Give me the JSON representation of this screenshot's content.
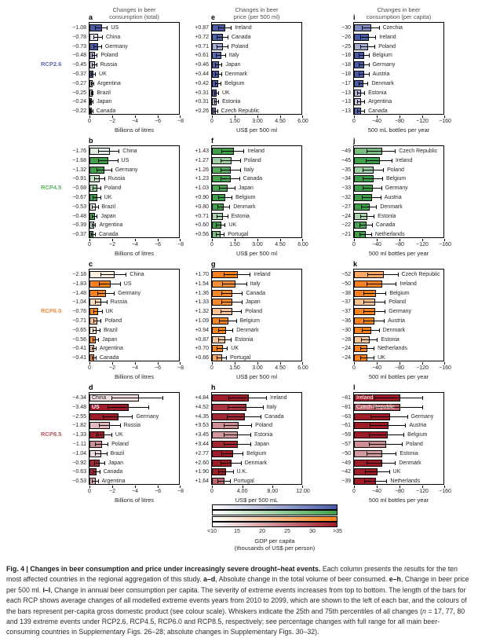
{
  "figure": {
    "col_titles": [
      "Changes in beer\nconsumption (total)",
      "Changes in beer\nprice (per 500 ml)",
      "Changes in beer\nconsumption (per capita)"
    ],
    "rcp_rows": [
      {
        "label": "RCP2.6",
        "color": "#5a6ab4"
      },
      {
        "label": "RCP4.5",
        "color": "#5cb260"
      },
      {
        "label": "RCP6.0",
        "color": "#f28b3e"
      },
      {
        "label": "RCP8.5",
        "color": "#b05560"
      }
    ],
    "row_base_colors": [
      "#4a5ba8",
      "#3fa04a",
      "#f8821f",
      "#9e1b28"
    ],
    "gdp_shades": {
      "US": 1.0,
      "China": 0.14,
      "Germany": 1.0,
      "Poland": 0.5,
      "Russia": 0.3,
      "UK": 1.0,
      "U.K.": 1.0,
      "Argentina": 0.35,
      "Brazil": 0.16,
      "Japan": 0.95,
      "Canada": 0.95,
      "Ireland": 1.0,
      "Italy": 0.9,
      "Denmark": 1.0,
      "Belgium": 1.0,
      "Estonia": 0.45,
      "Czech Republic": 0.7,
      "Czechia": 0.7,
      "Austria": 1.0,
      "Netherlands": 1.0,
      "Portugal": 0.68
    }
  },
  "chart_data": [
    {
      "panel": "a",
      "type": "bar",
      "row": 0,
      "col": 0,
      "rcp": "RCP2.6",
      "metric": "Changes in beer consumption (total)",
      "xlabel": "Billions of litres",
      "xmax": 8,
      "decimals": 2,
      "ticks": [
        "0",
        "−2",
        "−4",
        "−6",
        "−8"
      ],
      "categories": [
        "US",
        "China",
        "Germany",
        "Poland",
        "Russia",
        "UK",
        "Argentina",
        "Brazil",
        "Japan",
        "Canada"
      ],
      "values": [
        -1.08,
        -0.78,
        -0.73,
        -0.48,
        -0.45,
        -0.37,
        -0.27,
        -0.25,
        -0.24,
        -0.22
      ]
    },
    {
      "panel": "e",
      "type": "bar",
      "row": 0,
      "col": 1,
      "rcp": "RCP2.6",
      "metric": "Changes in beer price (per 500 ml)",
      "xlabel": "US$ per 500 ml",
      "xmax": 6,
      "decimals": 2,
      "ticks": [
        "0",
        "1.50",
        "3.00",
        "4.50",
        "6.00"
      ],
      "categories": [
        "Ireland",
        "Canada",
        "Poland",
        "Italy",
        "Japan",
        "Denmark",
        "Belgium",
        "UK",
        "Estonia",
        "Czech Republic"
      ],
      "values": [
        0.87,
        0.72,
        0.71,
        0.61,
        0.46,
        0.44,
        0.42,
        0.31,
        0.31,
        0.26
      ]
    },
    {
      "panel": "i",
      "type": "bar",
      "row": 0,
      "col": 2,
      "rcp": "RCP2.6",
      "metric": "Changes in beer consumption (per capita)",
      "xlabel": "500 mL bottles per year",
      "xmax": 160,
      "decimals": 0,
      "ticks": [
        "0",
        "−40",
        "−80",
        "−120",
        "−160"
      ],
      "categories": [
        "Czechia",
        "Ireland",
        "Poland",
        "Belgium",
        "Germany",
        "Austria",
        "Denmark",
        "Estonia",
        "Argentina",
        "Canada"
      ],
      "values": [
        -30,
        -26,
        -25,
        -18,
        -18,
        -18,
        -17,
        -13,
        -13,
        -13
      ]
    },
    {
      "panel": "b",
      "type": "bar",
      "row": 1,
      "col": 0,
      "rcp": "RCP4.5",
      "metric": "Changes in beer consumption (total)",
      "xlabel": "Billions of litres",
      "xmax": 8,
      "decimals": 2,
      "ticks": [
        "0",
        "−2",
        "−4",
        "−6",
        "−8"
      ],
      "categories": [
        "China",
        "US",
        "Germany",
        "Russia",
        "Poland",
        "UK",
        "Brazil",
        "Japan",
        "Argentina",
        "Canada"
      ],
      "values": [
        -1.76,
        -1.68,
        -1.32,
        -0.91,
        -0.68,
        -0.67,
        -0.53,
        -0.48,
        -0.39,
        -0.37
      ]
    },
    {
      "panel": "f",
      "type": "bar",
      "row": 1,
      "col": 1,
      "rcp": "RCP4.5",
      "metric": "Changes in beer price (per 500 ml)",
      "xlabel": "US$ per 500 ml",
      "xmax": 6,
      "decimals": 2,
      "ticks": [
        "0",
        "1.50",
        "3.00",
        "4.50",
        "6.00"
      ],
      "categories": [
        "Ireland",
        "Poland",
        "Italy",
        "Canada",
        "Japan",
        "Belgium",
        "Denmark",
        "Estonia",
        "UK",
        "Portugal"
      ],
      "values": [
        1.43,
        1.27,
        1.26,
        1.23,
        1.03,
        0.9,
        0.8,
        0.71,
        0.6,
        0.56
      ]
    },
    {
      "panel": "j",
      "type": "bar",
      "row": 1,
      "col": 2,
      "rcp": "RCP4.5",
      "metric": "Changes in beer consumption (per capita)",
      "xlabel": "500 ml bottles per year",
      "xmax": 160,
      "decimals": 0,
      "ticks": [
        "0",
        "−40",
        "−80",
        "−120",
        "−160"
      ],
      "categories": [
        "Czech Republic",
        "Ireland",
        "Poland",
        "Belgium",
        "Germany",
        "Austria",
        "Denmark",
        "Estonia",
        "Canada",
        "Netherlands"
      ],
      "values": [
        -49,
        -45,
        -35,
        -34,
        -33,
        -32,
        -27,
        -24,
        -22,
        -21
      ]
    },
    {
      "panel": "c",
      "type": "bar",
      "row": 2,
      "col": 0,
      "rcp": "RCP6.0",
      "metric": "Changes in beer consumption (total)",
      "xlabel": "Billions of litres",
      "xmax": 8,
      "decimals": 2,
      "ticks": [
        "0",
        "−2",
        "−4",
        "−6",
        "−8"
      ],
      "categories": [
        "China",
        "US",
        "Germany",
        "Russia",
        "UK",
        "Poland",
        "Brazil",
        "Japan",
        "Argentina",
        "Canada"
      ],
      "values": [
        -2.18,
        -1.83,
        -1.48,
        -1.04,
        -0.76,
        -0.71,
        -0.65,
        -0.56,
        -0.41,
        -0.41
      ]
    },
    {
      "panel": "g",
      "type": "bar",
      "row": 2,
      "col": 1,
      "rcp": "RCP6.0",
      "metric": "Changes in beer price (per 500 ml)",
      "xlabel": "US$ per 500 ml",
      "xmax": 6,
      "decimals": 2,
      "ticks": [
        "0",
        "1.50",
        "3.00",
        "4.50",
        "6.00"
      ],
      "categories": [
        "Ireland",
        "Italy",
        "Canada",
        "Japan",
        "Poland",
        "Belgium",
        "Denmark",
        "Estonia",
        "UK",
        "Portugal"
      ],
      "values": [
        1.7,
        1.54,
        1.36,
        1.33,
        1.32,
        1.09,
        0.94,
        0.87,
        0.7,
        0.66
      ]
    },
    {
      "panel": "k",
      "type": "bar",
      "row": 2,
      "col": 2,
      "rcp": "RCP6.0",
      "metric": "Changes in beer consumption (per capita)",
      "xlabel": "500 ml bottles per year",
      "xmax": 160,
      "decimals": 0,
      "ticks": [
        "0",
        "−40",
        "−80",
        "−120",
        "−160"
      ],
      "categories": [
        "Czech Republic",
        "Ireland",
        "Belgium",
        "Poland",
        "Germany",
        "Austria",
        "Denmark",
        "Estonia",
        "Netherlands",
        "UK"
      ],
      "values": [
        -52,
        -50,
        -38,
        -37,
        -37,
        -36,
        -30,
        -28,
        -24,
        -24
      ]
    },
    {
      "panel": "d",
      "type": "bar",
      "row": 3,
      "col": 0,
      "rcp": "RCP8.5",
      "metric": "Changes in beer consumption (total)",
      "xlabel": "Billions of litres",
      "xmax": 8,
      "decimals": 2,
      "ticks": [
        "0",
        "−2",
        "−4",
        "−6",
        "−8"
      ],
      "categories": [
        "China",
        "US",
        "Germany",
        "Russia",
        "UK",
        "Poland",
        "Brazil",
        "Japan",
        "Canada",
        "Argentina"
      ],
      "values": [
        -4.34,
        -3.48,
        -2.55,
        -1.82,
        -1.33,
        -1.11,
        -1.04,
        -0.92,
        -0.63,
        -0.53
      ],
      "inside_labels": [
        {
          "index": 0,
          "text_color": "#1a1a1a",
          "bold": false
        },
        {
          "index": 1,
          "text_color": "#ffffff",
          "bold": true
        }
      ]
    },
    {
      "panel": "h",
      "type": "bar",
      "row": 3,
      "col": 1,
      "rcp": "RCP8.5",
      "metric": "Changes in beer price (per 500 ml)",
      "xlabel": "US$ per 500 mL",
      "xmax": 12,
      "decimals": 2,
      "ticks": [
        "0",
        "4.00",
        "8.00",
        "12.00"
      ],
      "categories": [
        "Ireland",
        "Italy",
        "Canada",
        "Poland",
        "Estonia",
        "Japan",
        "Belgium",
        "Denmark",
        "U.K.",
        "Portugal"
      ],
      "values": [
        4.84,
        4.52,
        4.35,
        3.53,
        3.45,
        3.44,
        2.77,
        2.6,
        1.9,
        1.64
      ]
    },
    {
      "panel": "l",
      "type": "bar",
      "row": 3,
      "col": 2,
      "rcp": "RCP8.5",
      "metric": "Changes in beer consumption (per capita)",
      "xlabel": "500 ml bottles per year",
      "xmax": 160,
      "decimals": 0,
      "ticks": [
        "0",
        "−40",
        "−80",
        "−120",
        "−160"
      ],
      "categories": [
        "Ireland",
        "Czech Republic",
        "Germany",
        "Austria",
        "Belgium",
        "Poland",
        "Estonia",
        "Denmark",
        "UK",
        "Netherlands"
      ],
      "values": [
        -81,
        -81,
        -63,
        -61,
        -59,
        -57,
        -50,
        -49,
        -42,
        -39
      ],
      "inside_labels": [
        {
          "index": 0,
          "text_color": "#ffffff",
          "bold": false
        },
        {
          "index": 1,
          "text_color": "#ffffff",
          "bold": false
        }
      ]
    }
  ],
  "colorbar": {
    "tick_labels": [
      "<10",
      "15",
      "20",
      "25",
      "30",
      ">35"
    ],
    "title": "GDP per capita",
    "subtitle": "(thousands of US$ per person)",
    "strip_base_colors": [
      "#4a5ba8",
      "#3fa04a",
      "#f8821f",
      "#9e1b28"
    ]
  },
  "caption": {
    "segments": [
      {
        "text": "Fig. 4 | Changes in beer consumption and price under increasingly severe drought–heat events. ",
        "bold": true
      },
      {
        "text": "Each column presents the results for the ten most affected countries in the regional aggregation of this study. ",
        "bold": false
      },
      {
        "text": "a–d",
        "bold": true
      },
      {
        "text": ", Absolute change in the total volume of beer consumed. ",
        "bold": false
      },
      {
        "text": "e–h",
        "bold": true
      },
      {
        "text": ", Change in beer price per 500 ml. ",
        "bold": false
      },
      {
        "text": "i–l",
        "bold": true
      },
      {
        "text": ", Change in annual beer consumption per capita. The severity of extreme events increases from top to bottom. The length of the bars for each RCP shows average changes of all modelled extreme events years from 2010 to 2099, which are shown to the left of each bar, and the colours of the bars represent per-capita gross domestic product (see colour scale). Whiskers indicate the 25th and 75th percentiles of all changes (",
        "bold": false
      },
      {
        "text": "n",
        "bold": false,
        "italic": true
      },
      {
        "text": " = 17, 77, 80 and 139 extreme events under RCP2.6, RCP4.5, RCP6.0 and RCP8.5, respectively; see percentage changes with full range for all main beer-consuming countries in Supplementary Figs. 26–28; absolute changes in Supplementary Figs. 30–32).",
        "bold": false
      }
    ]
  }
}
